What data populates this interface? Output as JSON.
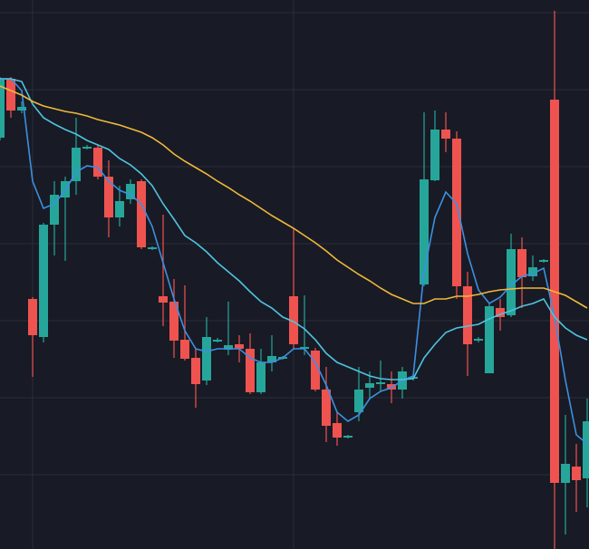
{
  "chart_data": {
    "type": "candlestick",
    "categories": [
      null,
      null,
      null,
      null,
      null,
      null,
      null,
      null,
      null,
      null,
      null,
      null,
      null,
      null,
      null,
      null,
      null,
      null,
      null,
      null,
      null,
      null,
      null,
      null,
      null,
      null,
      null,
      null,
      null,
      null,
      null,
      null,
      null,
      null,
      null,
      null,
      null,
      null,
      null,
      null,
      null,
      null,
      null,
      null,
      null,
      null,
      null,
      null,
      null,
      null,
      null,
      null,
      null,
      null,
      null
    ],
    "open": [
      448,
      513,
      478,
      270,
      228,
      352,
      382,
      400,
      437,
      437,
      405,
      360,
      380,
      400,
      326,
      273,
      267,
      225,
      205,
      180,
      223,
      214,
      220,
      215,
      167,
      200,
      204,
      273,
      215,
      213,
      170,
      133,
      117,
      145,
      172,
      176,
      176,
      170,
      182,
      286,
      401,
      457,
      447,
      284,
      224,
      188,
      260,
      252,
      325,
      295,
      311,
      490,
      67,
      85,
      72
    ],
    "high": [
      515,
      515,
      488,
      272,
      354,
      400,
      405,
      470,
      440,
      440,
      423,
      395,
      402,
      402,
      328,
      363,
      292,
      285,
      215,
      250,
      227,
      267,
      230,
      232,
      215,
      230,
      207,
      348,
      274,
      216,
      195,
      145,
      120,
      195,
      190,
      202,
      190,
      195,
      186,
      476,
      478,
      476,
      455,
      300,
      228,
      265,
      270,
      342,
      338,
      318,
      314,
      588,
      142,
      110,
      160
    ],
    "low": [
      445,
      470,
      475,
      184,
      222,
      318,
      312,
      385,
      435,
      402,
      338,
      350,
      375,
      325,
      324,
      240,
      205,
      202,
      150,
      175,
      222,
      208,
      200,
      165,
      165,
      190,
      203,
      215,
      208,
      168,
      112,
      108,
      116,
      135,
      160,
      168,
      155,
      160,
      180,
      284,
      400,
      432,
      270,
      185,
      222,
      188,
      235,
      250,
      260,
      290,
      310,
      -6,
      10,
      35,
      40
    ],
    "close": [
      512,
      478,
      482,
      230,
      352,
      385,
      400,
      437,
      438,
      405,
      360,
      378,
      397,
      327,
      327,
      266,
      224,
      204,
      176,
      228,
      225,
      219,
      215,
      167,
      200,
      207,
      206,
      220,
      217,
      170,
      130,
      117,
      119,
      170,
      177,
      178,
      170,
      190,
      184,
      402,
      457,
      447,
      284,
      220,
      226,
      262,
      250,
      325,
      294,
      305,
      313,
      67,
      88,
      70,
      135
    ],
    "up_color": "#26a69a",
    "down_color": "#ef5350",
    "lines": [
      {
        "color": "#3d8fe0",
        "values": [
          513,
          513,
          500,
          400,
          370,
          375,
          390,
          410,
          417,
          415,
          400,
          390,
          385,
          375,
          350,
          310,
          270,
          235,
          215,
          212,
          215,
          215,
          215,
          205,
          200,
          200,
          205,
          215,
          215,
          200,
          175,
          145,
          135,
          142,
          160,
          168,
          172,
          180,
          185,
          300,
          360,
          388,
          375,
          320,
          280,
          265,
          272,
          285,
          295,
          298,
          304,
          250,
          180,
          120,
          110
        ]
      },
      {
        "color": "#4fc3e0",
        "values": [
          513,
          513,
          510,
          485,
          470,
          463,
          457,
          452,
          445,
          440,
          435,
          425,
          418,
          408,
          395,
          375,
          358,
          340,
          332,
          322,
          310,
          300,
          290,
          278,
          267,
          260,
          250,
          245,
          237,
          225,
          210,
          200,
          195,
          190,
          185,
          182,
          181,
          181,
          182,
          205,
          220,
          233,
          238,
          240,
          242,
          248,
          253,
          257,
          262,
          265,
          270,
          250,
          238,
          230,
          225
        ]
      },
      {
        "color": "#f0b83a",
        "values": [
          505,
          500,
          495,
          488,
          483,
          480,
          477,
          475,
          472,
          468,
          465,
          462,
          458,
          454,
          448,
          440,
          430,
          422,
          415,
          408,
          400,
          393,
          385,
          378,
          370,
          362,
          355,
          348,
          340,
          332,
          323,
          313,
          305,
          297,
          290,
          282,
          275,
          270,
          265,
          265,
          270,
          270,
          273,
          273,
          275,
          278,
          280,
          281,
          282,
          282,
          282,
          278,
          274,
          267,
          260
        ]
      }
    ],
    "ylim": [
      -6,
      600
    ],
    "yticks": [
      586,
      501,
      416,
      331,
      246,
      161,
      76
    ],
    "xticks": [
      3,
      27
    ],
    "grid": true
  }
}
